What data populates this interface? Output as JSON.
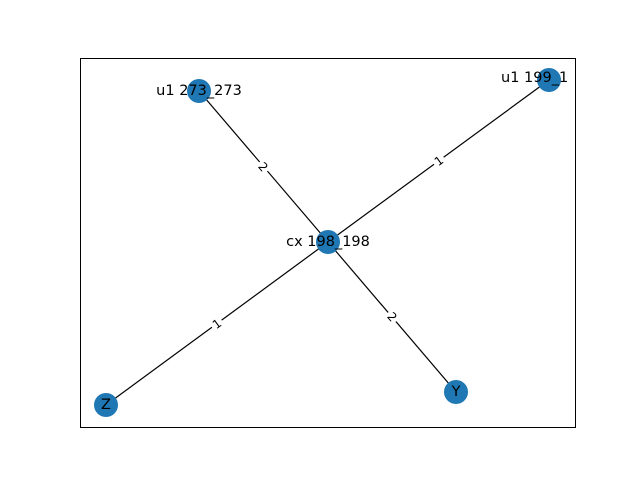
{
  "graph": {
    "nodes": [
      {
        "id": "u1_273",
        "label": "u1 273_273"
      },
      {
        "id": "u1_199",
        "label": "u1 199_1"
      },
      {
        "id": "cx_198",
        "label": "cx 198_198"
      },
      {
        "id": "Z",
        "label": "Z"
      },
      {
        "id": "Y",
        "label": "Y"
      }
    ],
    "edges": [
      {
        "from": "u1_273",
        "to": "cx_198",
        "label": "2"
      },
      {
        "from": "u1_199",
        "to": "cx_198",
        "label": "1"
      },
      {
        "from": "cx_198",
        "to": "Z",
        "label": "1"
      },
      {
        "from": "cx_198",
        "to": "Y",
        "label": "2"
      }
    ],
    "colors": {
      "node_fill": "#1f77b4",
      "edge": "#000000",
      "frame": "#000000",
      "background": "#ffffff"
    }
  }
}
